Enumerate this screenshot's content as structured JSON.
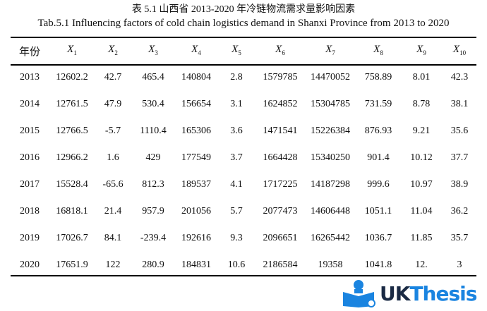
{
  "caption_cn": "表 5.1  山西省 2013-2020 年冷链物流需求量影响因素",
  "caption_en": "Tab.5.1 Influencing factors of cold chain logistics demand in Shanxi Province from 2013 to 2020",
  "headers": [
    {
      "label": "年份"
    },
    {
      "var": "X",
      "sub": "1"
    },
    {
      "var": "X",
      "sub": "2"
    },
    {
      "var": "X",
      "sub": "3"
    },
    {
      "var": "X",
      "sub": "4"
    },
    {
      "var": "X",
      "sub": "5"
    },
    {
      "var": "X",
      "sub": "6"
    },
    {
      "var": "X",
      "sub": "7"
    },
    {
      "var": "X",
      "sub": "8"
    },
    {
      "var": "X",
      "sub": "9"
    },
    {
      "var": "X",
      "sub": "10"
    }
  ],
  "rows": [
    [
      "2013",
      "12602.2",
      "42.7",
      "465.4",
      "140804",
      "2.8",
      "1579785",
      "14470052",
      "758.89",
      "8.01",
      "42.3"
    ],
    [
      "2014",
      "12761.5",
      "47.9",
      "530.4",
      "156654",
      "3.1",
      "1624852",
      "15304785",
      "731.59",
      "8.78",
      "38.1"
    ],
    [
      "2015",
      "12766.5",
      "-5.7",
      "1110.4",
      "165306",
      "3.6",
      "1471541",
      "15226384",
      "876.93",
      "9.21",
      "35.6"
    ],
    [
      "2016",
      "12966.2",
      "1.6",
      "429",
      "177549",
      "3.7",
      "1664428",
      "15340250",
      "901.4",
      "10.12",
      "37.7"
    ],
    [
      "2017",
      "15528.4",
      "-65.6",
      "812.3",
      "189537",
      "4.1",
      "1717225",
      "14187298",
      "999.6",
      "10.97",
      "38.9"
    ],
    [
      "2018",
      "16818.1",
      "21.4",
      "957.9",
      "201056",
      "5.7",
      "2077473",
      "14606448",
      "1051.1",
      "11.04",
      "36.2"
    ],
    [
      "2019",
      "17026.7",
      "84.1",
      "-239.4",
      "192616",
      "9.3",
      "2096651",
      "16265442",
      "1036.7",
      "11.85",
      "35.7"
    ],
    [
      "2020",
      "17651.9",
      "122",
      "280.9",
      "184831",
      "10.6",
      "2186584",
      "19358",
      "1041.8",
      "12.",
      "3"
    ]
  ],
  "watermark": {
    "part1": "UK",
    "part2": "Thesis",
    "color": "#1a84e0"
  }
}
